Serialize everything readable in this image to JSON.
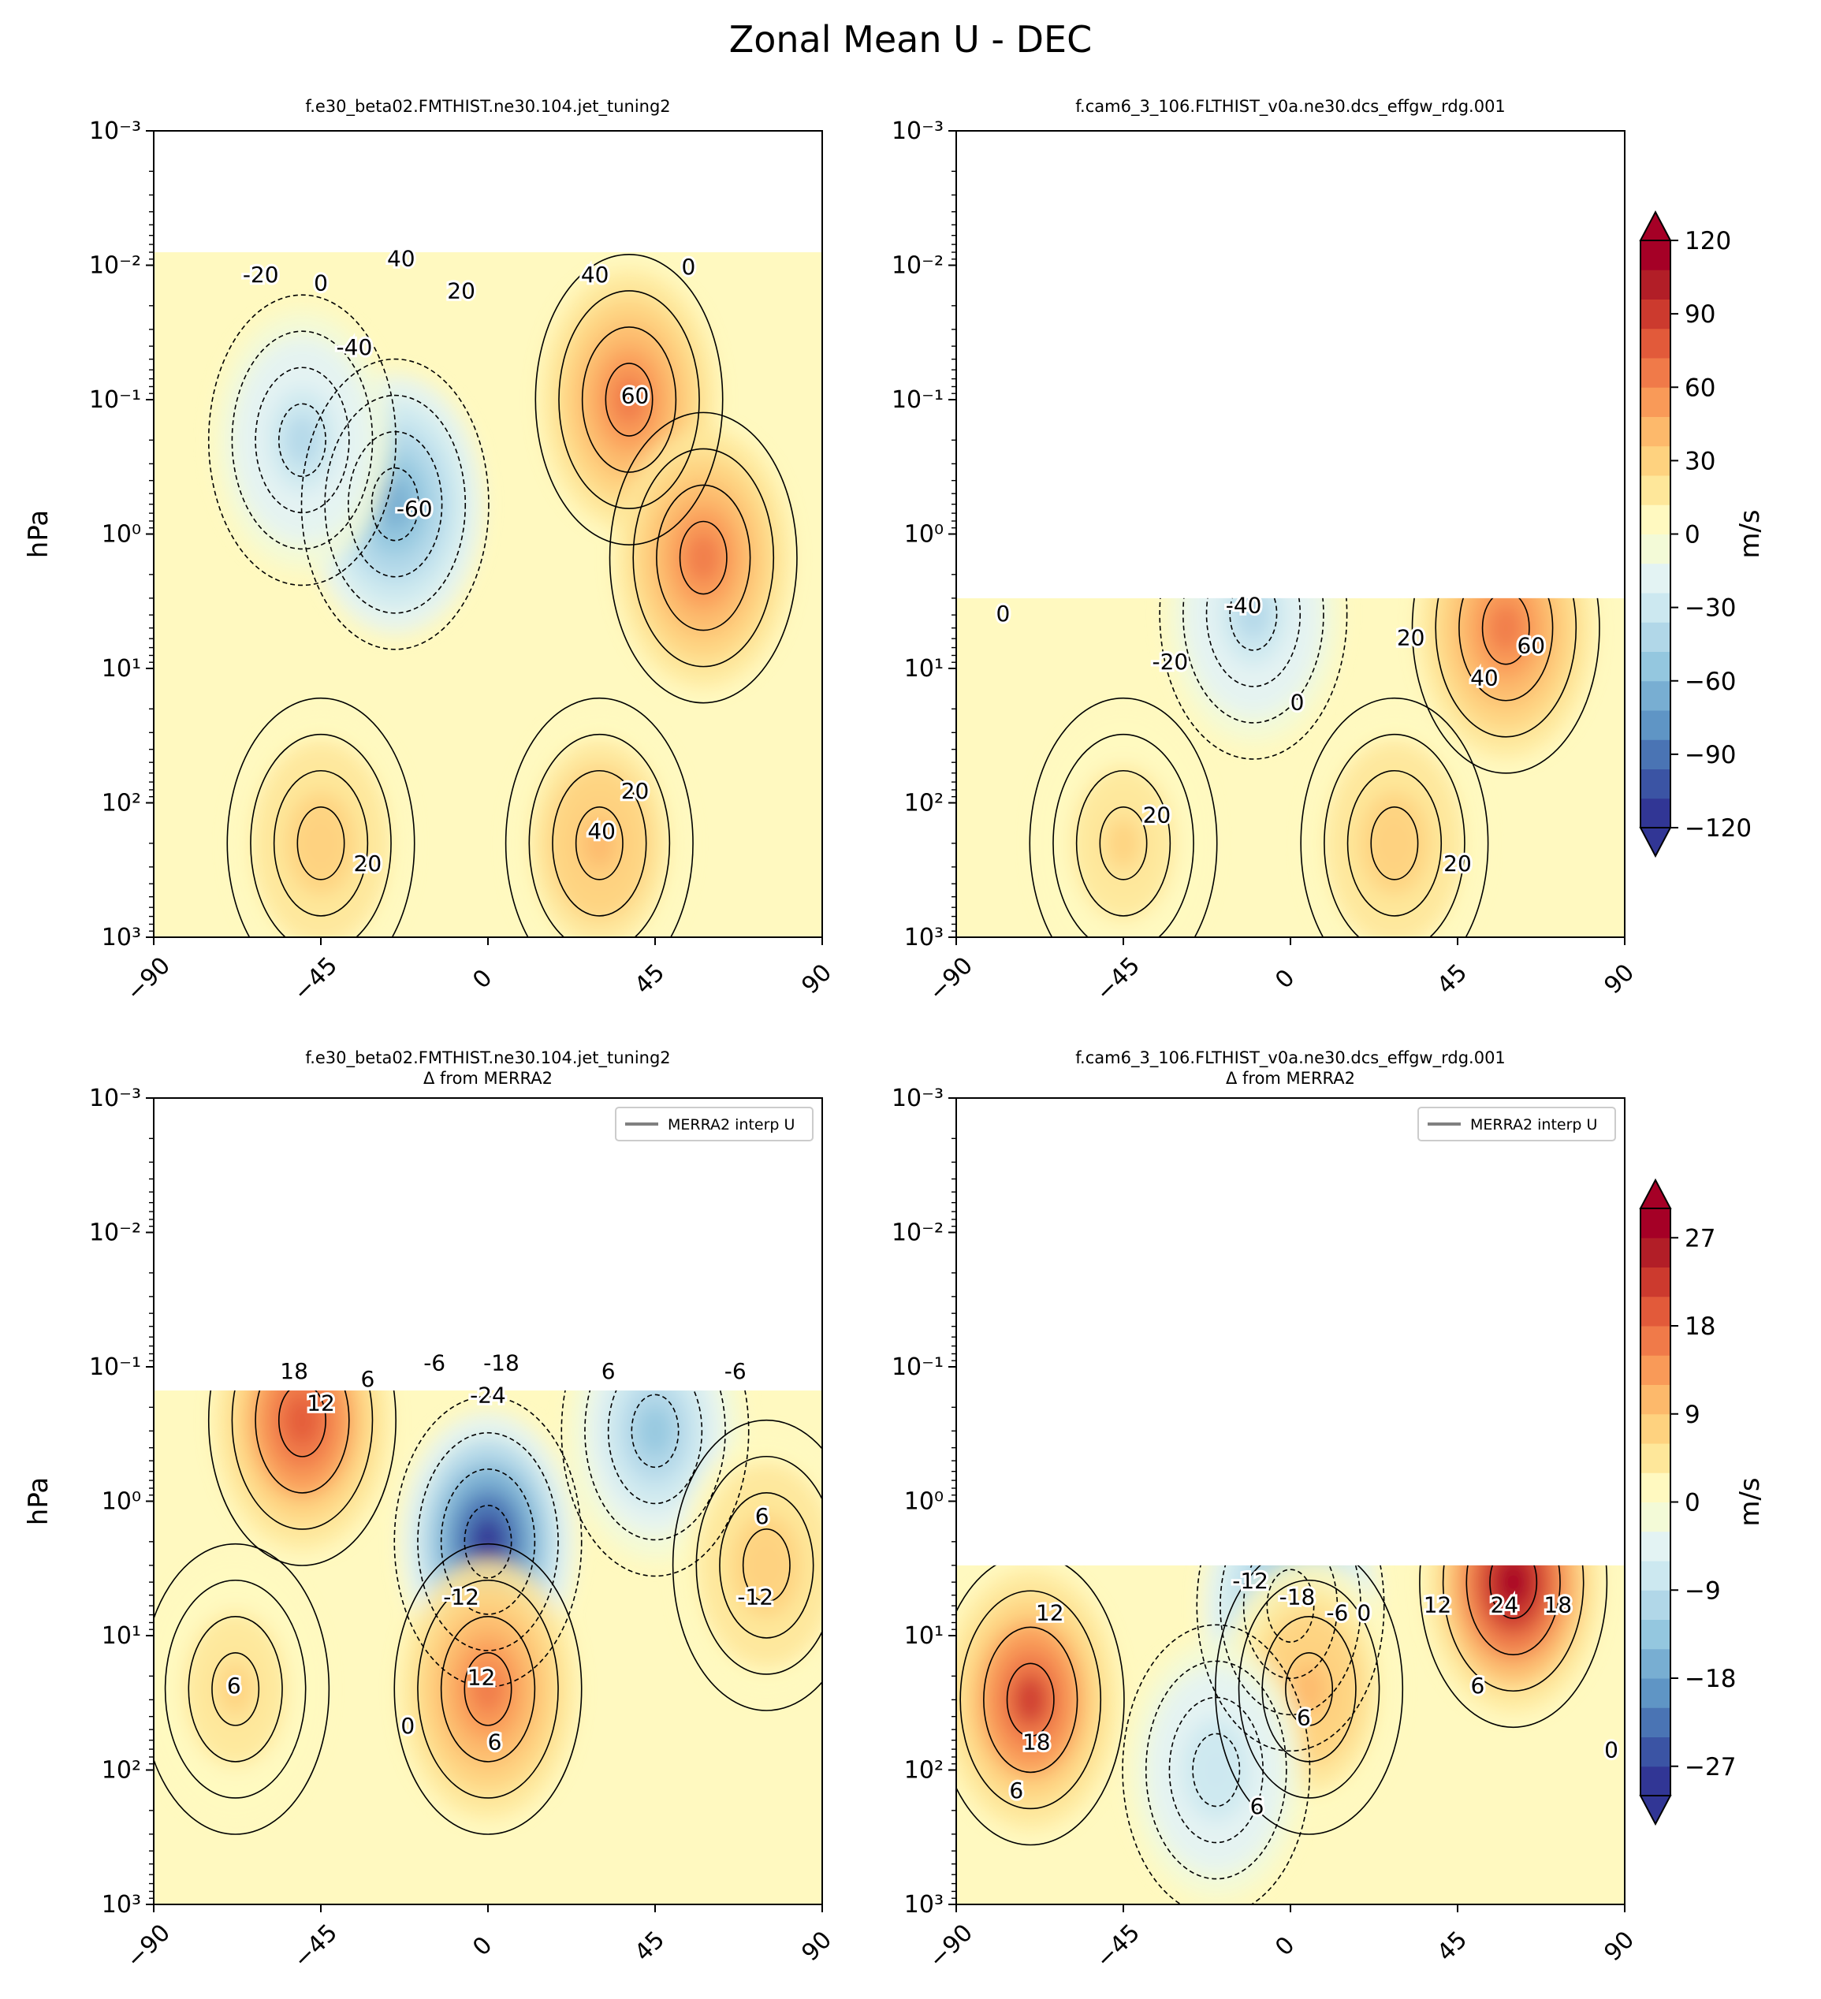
{
  "figure": {
    "title": "Zonal Mean U - DEC"
  },
  "colors": {
    "diverging": [
      "#313695",
      "#3b54a4",
      "#4a74b4",
      "#5f95c5",
      "#78aed2",
      "#94c7df",
      "#b1d7e8",
      "#cce8f0",
      "#e3f3f3",
      "#f3fad7",
      "#fff9c0",
      "#fee79a",
      "#fed27f",
      "#fdb96b",
      "#f99a58",
      "#f07a49",
      "#e25a3a",
      "#cc3a2e",
      "#b21e27",
      "#a50026"
    ]
  },
  "chart_data": [
    {
      "type": "contour",
      "panel": "top-left",
      "title": "f.e30_beta02.FMTHIST.ne30.104.jet_tuning2",
      "subtitle": "",
      "ylabel": "hPa",
      "xlabel": "",
      "y_scale": "log",
      "y_ticks": [
        "10⁻³",
        "10⁻²",
        "10⁻¹",
        "10⁰",
        "10¹",
        "10²",
        "10³"
      ],
      "x_ticks": [
        "−90",
        "−45",
        "0",
        "45",
        "90"
      ],
      "xlim": [
        -90,
        90
      ],
      "ylim_hPa": [
        1000,
        0.001
      ],
      "model_top_hPa": 0.008,
      "contour_labels": [
        "-20",
        "0",
        "40",
        "20",
        "40",
        "0",
        "-40",
        "60",
        "-60",
        "20",
        "40",
        "20"
      ],
      "features": [
        {
          "kind": "max",
          "lat": 38,
          "p": 0.1,
          "value": 70
        },
        {
          "kind": "max",
          "lat": 58,
          "p": 1.5,
          "value": 60
        },
        {
          "kind": "min",
          "lat": -25,
          "p": 0.6,
          "value": -65
        },
        {
          "kind": "min",
          "lat": -50,
          "p": 0.2,
          "value": -40
        },
        {
          "kind": "max",
          "lat": -45,
          "p": 200,
          "value": 30
        },
        {
          "kind": "max",
          "lat": 30,
          "p": 200,
          "value": 40
        }
      ]
    },
    {
      "type": "contour",
      "panel": "top-right",
      "title": "f.cam6_3_106.FLTHIST_v0a.ne30.dcs_effgw_rdg.001",
      "subtitle": "",
      "ylabel": "",
      "y_scale": "log",
      "y_ticks": [
        "10⁻³",
        "10⁻²",
        "10⁻¹",
        "10⁰",
        "10¹",
        "10²",
        "10³"
      ],
      "x_ticks": [
        "−90",
        "−45",
        "0",
        "45",
        "90"
      ],
      "xlim": [
        -90,
        90
      ],
      "ylim_hPa": [
        1000,
        0.001
      ],
      "model_top_hPa": 3,
      "contour_labels": [
        "0",
        "-40",
        "-20",
        "0",
        "20",
        "60",
        "40",
        "20",
        "20"
      ],
      "features": [
        {
          "kind": "max",
          "lat": 58,
          "p": 5,
          "value": 65
        },
        {
          "kind": "min",
          "lat": -10,
          "p": 3,
          "value": -40
        },
        {
          "kind": "max",
          "lat": -45,
          "p": 200,
          "value": 28
        },
        {
          "kind": "max",
          "lat": 28,
          "p": 200,
          "value": 30
        }
      ]
    },
    {
      "type": "contour",
      "panel": "bottom-left",
      "title": "f.e30_beta02.FMTHIST.ne30.104.jet_tuning2",
      "subtitle": "Δ from MERRA2",
      "ylabel": "hPa",
      "y_scale": "log",
      "y_ticks": [
        "10⁻³",
        "10⁻²",
        "10⁻¹",
        "10⁰",
        "10¹",
        "10²",
        "10³"
      ],
      "x_ticks": [
        "−90",
        "−45",
        "0",
        "45",
        "90"
      ],
      "xlim": [
        -90,
        90
      ],
      "ylim_hPa": [
        1000,
        0.001
      ],
      "model_top_hPa": 0.15,
      "legend": {
        "label": "MERRA2 interp U",
        "position": "top-right"
      },
      "contour_labels": [
        "18",
        "6",
        "12",
        "-6",
        "-18",
        "-24",
        "6",
        "-12",
        "-6",
        "6",
        "-12",
        "12",
        "6",
        "0",
        "6"
      ],
      "features": [
        {
          "kind": "max",
          "lat": -50,
          "p": 0.25,
          "value": 20
        },
        {
          "kind": "min",
          "lat": 0,
          "p": 2,
          "value": -30
        },
        {
          "kind": "min",
          "lat": 45,
          "p": 0.3,
          "value": -14
        },
        {
          "kind": "max",
          "lat": 75,
          "p": 3,
          "value": 8
        },
        {
          "kind": "max",
          "lat": 0,
          "p": 25,
          "value": 15
        },
        {
          "kind": "max",
          "lat": -68,
          "p": 25,
          "value": 7
        }
      ]
    },
    {
      "type": "contour",
      "panel": "bottom-right",
      "title": "f.cam6_3_106.FLTHIST_v0a.ne30.dcs_effgw_rdg.001",
      "subtitle": "Δ from MERRA2",
      "ylabel": "",
      "y_scale": "log",
      "y_ticks": [
        "10⁻³",
        "10⁻²",
        "10⁻¹",
        "10⁰",
        "10¹",
        "10²",
        "10³"
      ],
      "x_ticks": [
        "−90",
        "−45",
        "0",
        "45",
        "90"
      ],
      "xlim": [
        -90,
        90
      ],
      "ylim_hPa": [
        1000,
        0.001
      ],
      "model_top_hPa": 3,
      "legend": {
        "label": "MERRA2 interp U",
        "position": "top-right"
      },
      "contour_labels": [
        "12",
        "-12",
        "-18",
        "-6",
        "0",
        "12",
        "24",
        "18",
        "6",
        "18",
        "6",
        "6",
        "0",
        "6"
      ],
      "features": [
        {
          "kind": "max",
          "lat": -70,
          "p": 30,
          "value": 22
        },
        {
          "kind": "max",
          "lat": 60,
          "p": 4,
          "value": 28
        },
        {
          "kind": "min",
          "lat": 0,
          "p": 6,
          "value": -18
        },
        {
          "kind": "max",
          "lat": 5,
          "p": 25,
          "value": 10
        },
        {
          "kind": "min",
          "lat": -20,
          "p": 100,
          "value": -8
        }
      ]
    }
  ],
  "colorbars": [
    {
      "panel": "top",
      "label": "m/s",
      "ticks": [
        "120",
        "90",
        "60",
        "30",
        "0",
        "−30",
        "−60",
        "−90",
        "−120"
      ],
      "range": [
        -120,
        120
      ]
    },
    {
      "panel": "bottom",
      "label": "m/s",
      "ticks": [
        "27",
        "18",
        "9",
        "0",
        "−9",
        "−18",
        "−27"
      ],
      "range": [
        -30,
        30
      ]
    }
  ]
}
